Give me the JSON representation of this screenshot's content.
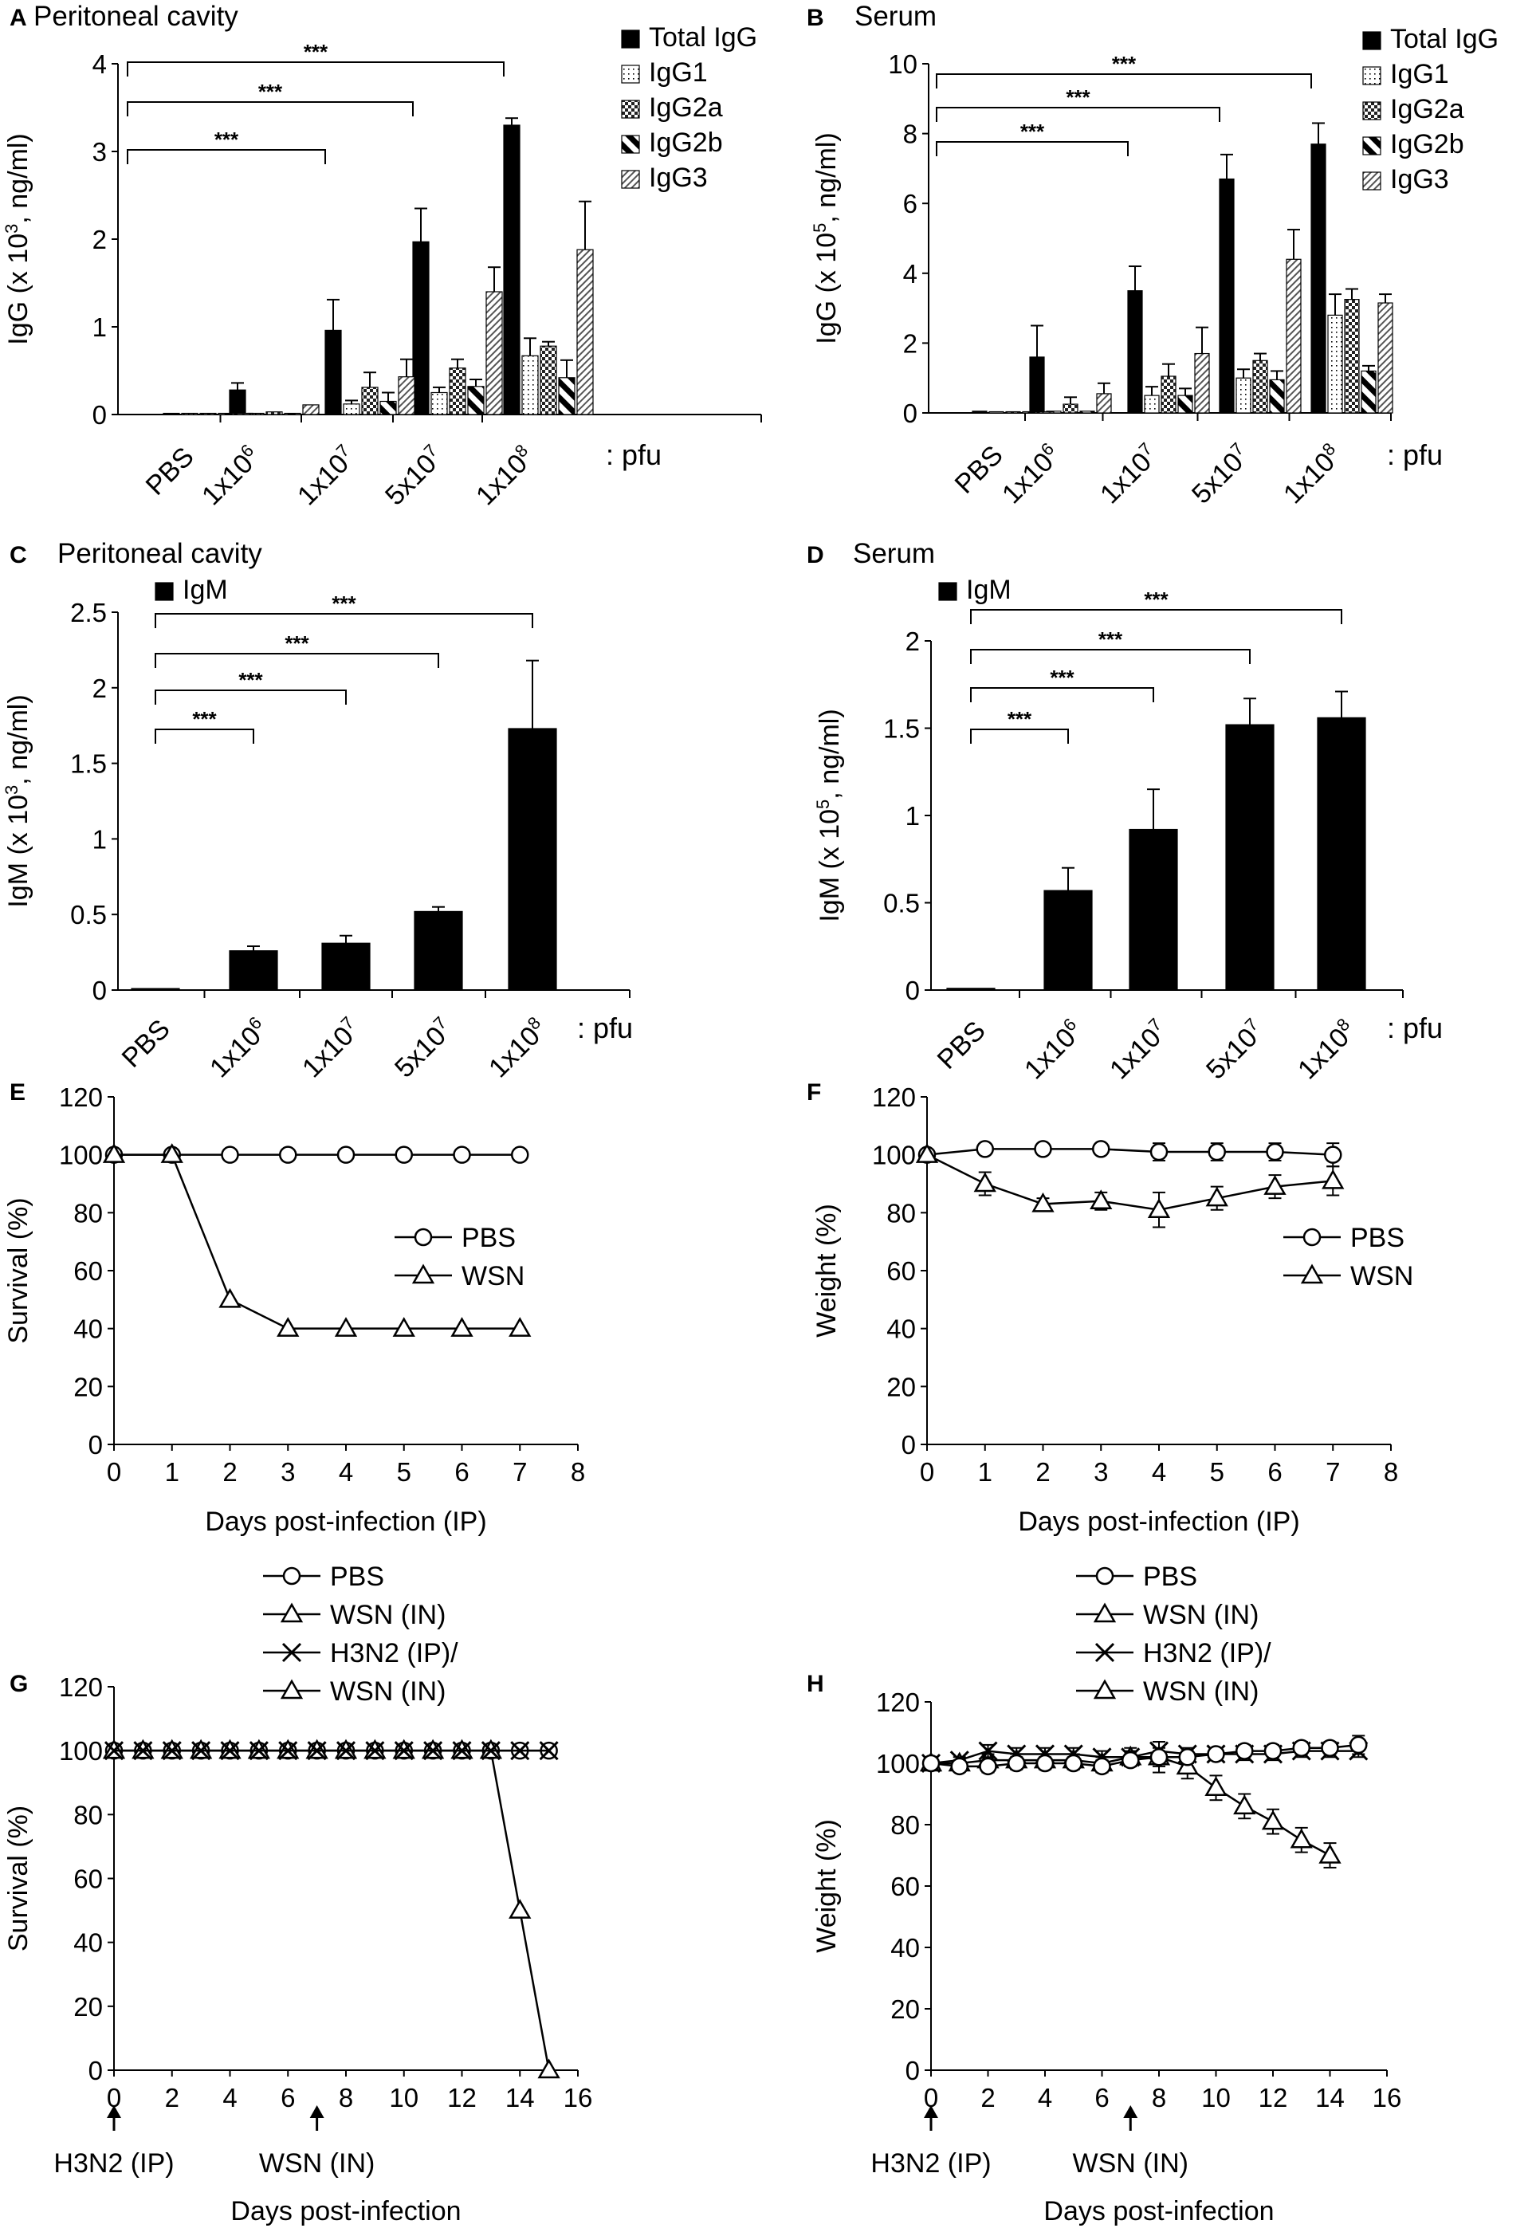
{
  "chart_data": [
    {
      "id": "A",
      "panel": "A",
      "type": "bar",
      "title": "Peritoneal cavity",
      "ylabel_main": "IgG (x 10",
      "ylabel_sup": "3",
      "ylabel_tail": ", ng/ml)",
      "ylim": [
        0,
        4
      ],
      "yticks": [
        0,
        1,
        2,
        3,
        4
      ],
      "unit_label": ": pfu",
      "categories": [
        {
          "base": "PBS",
          "sup": ""
        },
        {
          "base": "1x10",
          "sup": "6"
        },
        {
          "base": "1x10",
          "sup": "7"
        },
        {
          "base": "5x10",
          "sup": "7"
        },
        {
          "base": "1x10",
          "sup": "8"
        }
      ],
      "series": [
        {
          "name": "Total IgG",
          "pattern": "solid",
          "values": [
            0.01,
            0.28,
            0.96,
            1.97,
            3.3
          ],
          "errors": [
            0,
            0.08,
            0.35,
            0.38,
            0.08
          ]
        },
        {
          "name": "IgG1",
          "pattern": "dots",
          "values": [
            0,
            0.01,
            0.12,
            0.25,
            0.67
          ],
          "errors": [
            0,
            0,
            0.04,
            0.06,
            0.2
          ]
        },
        {
          "name": "IgG2a",
          "pattern": "check",
          "values": [
            0,
            0.03,
            0.31,
            0.53,
            0.78
          ],
          "errors": [
            0,
            0,
            0.17,
            0.1,
            0.05
          ]
        },
        {
          "name": "IgG2b",
          "pattern": "diag",
          "values": [
            0,
            0.01,
            0.15,
            0.32,
            0.42
          ],
          "errors": [
            0,
            0,
            0.1,
            0.08,
            0.2
          ]
        },
        {
          "name": "IgG3",
          "pattern": "hatch",
          "values": [
            0,
            0.11,
            0.43,
            1.4,
            1.88
          ],
          "errors": [
            0,
            0,
            0.2,
            0.28,
            0.55
          ]
        }
      ],
      "significance": [
        {
          "from": "PBS",
          "to": "1x10^7",
          "label": "***"
        },
        {
          "from": "PBS",
          "to": "5x10^7",
          "label": "***"
        },
        {
          "from": "PBS",
          "to": "1x10^8",
          "label": "***"
        }
      ]
    },
    {
      "id": "B",
      "panel": "B",
      "type": "bar",
      "title": "Serum",
      "ylabel_main": "IgG (x 10",
      "ylabel_sup": "5",
      "ylabel_tail": ", ng/ml)",
      "ylim": [
        0,
        10
      ],
      "yticks": [
        0,
        2,
        4,
        6,
        8,
        10
      ],
      "unit_label": ": pfu",
      "categories": [
        {
          "base": "PBS",
          "sup": ""
        },
        {
          "base": "1x10",
          "sup": "6"
        },
        {
          "base": "1x10",
          "sup": "7"
        },
        {
          "base": "5x10",
          "sup": "7"
        },
        {
          "base": "1x10",
          "sup": "8"
        }
      ],
      "series": [
        {
          "name": "Total IgG",
          "pattern": "solid",
          "values": [
            0.05,
            1.6,
            3.5,
            6.7,
            7.7
          ],
          "errors": [
            0,
            0.9,
            0.7,
            0.7,
            0.6
          ]
        },
        {
          "name": "IgG1",
          "pattern": "dots",
          "values": [
            0,
            0.05,
            0.5,
            1.0,
            2.8
          ],
          "errors": [
            0,
            0,
            0.25,
            0.25,
            0.6
          ]
        },
        {
          "name": "IgG2a",
          "pattern": "check",
          "values": [
            0,
            0.25,
            1.05,
            1.5,
            3.25
          ],
          "errors": [
            0,
            0.2,
            0.35,
            0.2,
            0.3
          ]
        },
        {
          "name": "IgG2b",
          "pattern": "diag",
          "values": [
            0,
            0.05,
            0.5,
            0.95,
            1.2
          ],
          "errors": [
            0,
            0,
            0.2,
            0.25,
            0.15
          ]
        },
        {
          "name": "IgG3",
          "pattern": "hatch",
          "values": [
            0,
            0.55,
            1.7,
            4.4,
            3.15
          ],
          "errors": [
            0,
            0.3,
            0.75,
            0.85,
            0.25
          ]
        }
      ],
      "significance": [
        {
          "from": "PBS",
          "to": "1x10^7",
          "label": "***"
        },
        {
          "from": "PBS",
          "to": "5x10^7",
          "label": "***"
        },
        {
          "from": "PBS",
          "to": "1x10^8",
          "label": "***"
        }
      ]
    },
    {
      "id": "C",
      "panel": "C",
      "type": "bar",
      "title": "Peritoneal cavity",
      "ylabel_main": "IgM (x 10",
      "ylabel_sup": "3",
      "ylabel_tail": ", ng/ml)",
      "ylim": [
        0,
        2.5
      ],
      "yticks": [
        0,
        0.5,
        1,
        1.5,
        2,
        2.5
      ],
      "unit_label": ": pfu",
      "categories": [
        {
          "base": "PBS",
          "sup": ""
        },
        {
          "base": "1x10",
          "sup": "6"
        },
        {
          "base": "1x10",
          "sup": "7"
        },
        {
          "base": "5x10",
          "sup": "7"
        },
        {
          "base": "1x10",
          "sup": "8"
        }
      ],
      "series": [
        {
          "name": "IgM",
          "pattern": "solid",
          "values": [
            0.01,
            0.26,
            0.31,
            0.52,
            1.73
          ],
          "errors": [
            0,
            0.03,
            0.05,
            0.03,
            0.45
          ]
        }
      ],
      "significance": [
        {
          "from": "PBS",
          "to": "1x10^6",
          "label": "***"
        },
        {
          "from": "PBS",
          "to": "1x10^7",
          "label": "***"
        },
        {
          "from": "PBS",
          "to": "5x10^7",
          "label": "***"
        },
        {
          "from": "PBS",
          "to": "1x10^8",
          "label": "***"
        }
      ]
    },
    {
      "id": "D",
      "panel": "D",
      "type": "bar",
      "title": "Serum",
      "ylabel_main": "IgM (x 10",
      "ylabel_sup": "5",
      "ylabel_tail": ", ng/ml)",
      "ylim": [
        0,
        2
      ],
      "yticks": [
        0,
        0.5,
        1,
        1.5,
        2
      ],
      "unit_label": ": pfu",
      "categories": [
        {
          "base": "PBS",
          "sup": ""
        },
        {
          "base": "1x10",
          "sup": "6"
        },
        {
          "base": "1x10",
          "sup": "7"
        },
        {
          "base": "5x10",
          "sup": "7"
        },
        {
          "base": "1x10",
          "sup": "8"
        }
      ],
      "series": [
        {
          "name": "IgM",
          "pattern": "solid",
          "values": [
            0.01,
            0.57,
            0.92,
            1.52,
            1.56
          ],
          "errors": [
            0,
            0.13,
            0.23,
            0.15,
            0.15
          ]
        }
      ],
      "significance": [
        {
          "from": "PBS",
          "to": "1x10^6",
          "label": "***"
        },
        {
          "from": "PBS",
          "to": "1x10^7",
          "label": "***"
        },
        {
          "from": "PBS",
          "to": "5x10^7",
          "label": "***"
        },
        {
          "from": "PBS",
          "to": "1x10^8",
          "label": "***"
        }
      ]
    },
    {
      "id": "E",
      "panel": "E",
      "type": "line",
      "title": "",
      "ylabel": "Survival (%)",
      "xlabel": "Days post-infection (IP)",
      "xlim": [
        0,
        8
      ],
      "ylim": [
        0,
        120
      ],
      "xticks": [
        0,
        1,
        2,
        3,
        4,
        5,
        6,
        7,
        8
      ],
      "yticks": [
        0,
        20,
        40,
        60,
        80,
        100,
        120
      ],
      "series": [
        {
          "name": "PBS",
          "marker": "circle",
          "x": [
            0,
            1,
            2,
            3,
            4,
            5,
            6,
            7
          ],
          "y": [
            100,
            100,
            100,
            100,
            100,
            100,
            100,
            100
          ],
          "errors": []
        },
        {
          "name": "WSN",
          "marker": "triangle",
          "x": [
            0,
            1,
            2,
            3,
            4,
            5,
            6,
            7
          ],
          "y": [
            100,
            100,
            50,
            40,
            40,
            40,
            40,
            40
          ],
          "errors": []
        }
      ],
      "legend": [
        "PBS",
        "WSN"
      ],
      "arrows": []
    },
    {
      "id": "F",
      "panel": "F",
      "type": "line",
      "title": "",
      "ylabel": "Weight (%)",
      "xlabel": "Days post-infection (IP)",
      "xlim": [
        0,
        8
      ],
      "ylim": [
        0,
        120
      ],
      "xticks": [
        0,
        1,
        2,
        3,
        4,
        5,
        6,
        7,
        8
      ],
      "yticks": [
        0,
        20,
        40,
        60,
        80,
        100,
        120
      ],
      "series": [
        {
          "name": "PBS",
          "marker": "circle",
          "x": [
            0,
            1,
            2,
            3,
            4,
            5,
            6,
            7
          ],
          "y": [
            100,
            102,
            102,
            102,
            101,
            101,
            101,
            100
          ],
          "errors": [
            0,
            1,
            1,
            1,
            3,
            3,
            3,
            4
          ]
        },
        {
          "name": "WSN",
          "marker": "triangle",
          "x": [
            0,
            1,
            2,
            3,
            4,
            5,
            6,
            7
          ],
          "y": [
            100,
            90,
            83,
            84,
            81,
            85,
            89,
            91
          ],
          "errors": [
            0,
            4,
            2,
            3,
            6,
            4,
            4,
            5
          ]
        }
      ],
      "legend": [
        "PBS",
        "WSN"
      ],
      "arrows": []
    },
    {
      "id": "G",
      "panel": "G",
      "type": "line",
      "title": "",
      "ylabel": "Survival (%)",
      "xlabel": "Days post-infection",
      "xlim": [
        0,
        16
      ],
      "ylim": [
        0,
        120
      ],
      "xticks": [
        0,
        2,
        4,
        6,
        8,
        10,
        12,
        14,
        16
      ],
      "yticks": [
        0,
        20,
        40,
        60,
        80,
        100,
        120
      ],
      "series": [
        {
          "name": "PBS",
          "marker": "circle",
          "x": [
            0,
            1,
            2,
            3,
            4,
            5,
            6,
            7,
            8,
            9,
            10,
            11,
            12,
            13,
            14,
            15
          ],
          "y": [
            100,
            100,
            100,
            100,
            100,
            100,
            100,
            100,
            100,
            100,
            100,
            100,
            100,
            100,
            100,
            100
          ],
          "errors": []
        },
        {
          "name": "WSN (IN)",
          "marker": "triangle",
          "x": [
            0,
            1,
            2,
            3,
            4,
            5,
            6,
            7,
            8,
            9,
            10,
            11,
            12,
            13,
            14,
            15
          ],
          "y": [
            100,
            100,
            100,
            100,
            100,
            100,
            100,
            100,
            100,
            100,
            100,
            100,
            100,
            100,
            50,
            0
          ],
          "errors": []
        },
        {
          "name": "H3N2 (IP)/ WSN (IN)",
          "marker": "x",
          "x": [
            0,
            1,
            2,
            3,
            4,
            5,
            6,
            7,
            8,
            9,
            10,
            11,
            12,
            13,
            14,
            15
          ],
          "y": [
            100,
            100,
            100,
            100,
            100,
            100,
            100,
            100,
            100,
            100,
            100,
            100,
            100,
            100,
            100,
            100
          ],
          "errors": []
        }
      ],
      "legend": [
        "PBS",
        "WSN (IN)",
        "H3N2 (IP)/",
        "WSN (IN)"
      ],
      "arrows": [
        {
          "x": 0,
          "label": "H3N2 (IP)"
        },
        {
          "x": 7,
          "label": "WSN (IN)"
        }
      ]
    },
    {
      "id": "H",
      "panel": "H",
      "type": "line",
      "title": "",
      "ylabel": "Weight (%)",
      "xlabel": "Days post-infection",
      "xlim": [
        0,
        16
      ],
      "ylim": [
        0,
        120
      ],
      "xticks": [
        0,
        2,
        4,
        6,
        8,
        10,
        12,
        14,
        16
      ],
      "yticks": [
        0,
        20,
        40,
        60,
        80,
        100,
        120
      ],
      "series": [
        {
          "name": "WSN (IN)",
          "marker": "triangle",
          "x": [
            0,
            1,
            2,
            3,
            4,
            5,
            6,
            7,
            8,
            9,
            10,
            11,
            12,
            13,
            14
          ],
          "y": [
            100,
            100,
            101,
            101,
            101,
            101,
            100,
            102,
            102,
            99,
            92,
            86,
            81,
            75,
            70
          ],
          "errors": [
            0,
            1,
            2,
            2,
            2,
            2,
            2,
            3,
            5,
            4,
            4,
            4,
            4,
            4,
            4
          ]
        },
        {
          "name": "H3N2 (IP)/ WSN (IN)",
          "marker": "x",
          "x": [
            0,
            1,
            2,
            3,
            4,
            5,
            6,
            7,
            8,
            9,
            10,
            11,
            12,
            13,
            14,
            15
          ],
          "y": [
            100,
            101,
            104,
            103,
            103,
            103,
            102,
            102,
            104,
            103,
            103,
            103,
            103,
            104,
            104,
            104
          ],
          "errors": [
            0,
            1,
            2,
            2,
            2,
            2,
            2,
            2,
            3,
            2,
            2,
            2,
            2,
            2,
            2,
            2
          ]
        },
        {
          "name": "PBS",
          "marker": "circle",
          "x": [
            0,
            1,
            2,
            3,
            4,
            5,
            6,
            7,
            8,
            9,
            10,
            11,
            12,
            13,
            14,
            15
          ],
          "y": [
            100,
            99,
            99,
            100,
            100,
            100,
            99,
            101,
            102,
            102,
            103,
            104,
            104,
            105,
            105,
            106
          ],
          "errors": [
            0,
            1,
            2,
            2,
            2,
            2,
            2,
            2,
            3,
            2,
            2,
            2,
            2,
            2,
            2,
            3
          ]
        }
      ],
      "legend": [
        "PBS",
        "WSN (IN)",
        "H3N2 (IP)/",
        "WSN (IN)"
      ],
      "arrows": [
        {
          "x": 0,
          "label": "H3N2 (IP)"
        },
        {
          "x": 7,
          "label": "WSN (IN)"
        }
      ]
    }
  ]
}
